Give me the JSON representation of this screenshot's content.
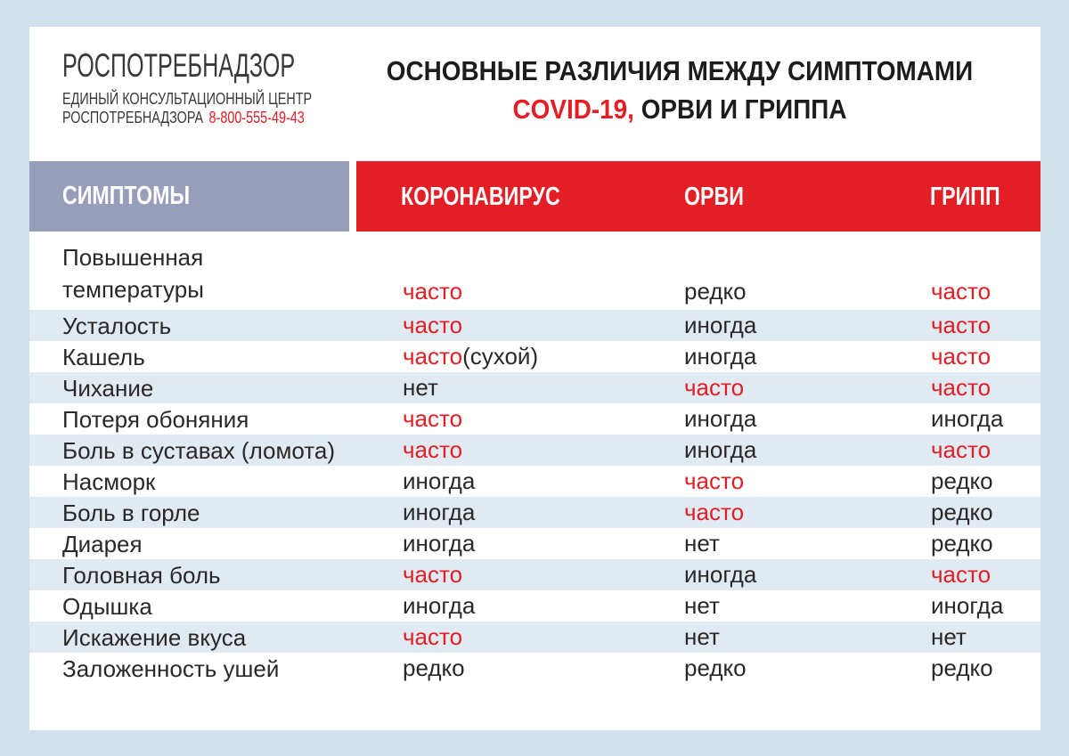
{
  "colors": {
    "page_bg": "#cfe1ea",
    "card_bg": "#ffffff",
    "accent_red": "#e31e24",
    "header_gray_blue": "#969eba",
    "alt_row_blue": "#dfeaf2",
    "text_dark": "#2b2827"
  },
  "logo": {
    "title": "РОСПОТРЕБНАДЗОР",
    "subtitle_line1": "ЕДИНЫЙ КОНСУЛЬТАЦИОННЫЙ ЦЕНТР",
    "subtitle_line2": "РОСПОТРЕБНАДЗОРА",
    "phone": "8-800-555-49-43"
  },
  "title": {
    "line1": "ОСНОВНЫЕ РАЗЛИЧИЯ МЕЖДУ СИМПТОМАМИ",
    "line2_red": "COVID-19,",
    "line2_rest": " ОРВИ И ГРИППА"
  },
  "table": {
    "symptom_header": "СИМПТОМЫ",
    "col_headers": [
      "КОРОНАВИРУС",
      "ОРВИ",
      "ГРИПП"
    ],
    "rows": [
      {
        "symptom_lines": [
          "Повышенная",
          "температуры"
        ],
        "cells": [
          [
            {
              "text": "часто",
              "red": true
            }
          ],
          [
            {
              "text": "редко",
              "red": false
            }
          ],
          [
            {
              "text": "часто",
              "red": true
            }
          ]
        ]
      },
      {
        "symptom_lines": [
          "Усталость"
        ],
        "cells": [
          [
            {
              "text": "часто",
              "red": true
            }
          ],
          [
            {
              "text": "иногда",
              "red": false
            }
          ],
          [
            {
              "text": "часто",
              "red": true
            }
          ]
        ]
      },
      {
        "symptom_lines": [
          "Кашель"
        ],
        "cells": [
          [
            {
              "text": "часто",
              "red": true
            },
            {
              "text": "(сухой)",
              "red": false
            }
          ],
          [
            {
              "text": "иногда",
              "red": false
            }
          ],
          [
            {
              "text": "часто",
              "red": true
            }
          ]
        ]
      },
      {
        "symptom_lines": [
          "Чихание"
        ],
        "cells": [
          [
            {
              "text": "нет",
              "red": false
            }
          ],
          [
            {
              "text": "часто",
              "red": true
            }
          ],
          [
            {
              "text": "часто",
              "red": true
            }
          ]
        ]
      },
      {
        "symptom_lines": [
          "Потеря обоняния"
        ],
        "cells": [
          [
            {
              "text": "часто",
              "red": true
            }
          ],
          [
            {
              "text": "иногда",
              "red": false
            }
          ],
          [
            {
              "text": "иногда",
              "red": false
            }
          ]
        ]
      },
      {
        "symptom_lines": [
          "Боль в суставах (ломота)"
        ],
        "cells": [
          [
            {
              "text": "часто",
              "red": true
            }
          ],
          [
            {
              "text": "иногда",
              "red": false
            }
          ],
          [
            {
              "text": "часто",
              "red": true
            }
          ]
        ]
      },
      {
        "symptom_lines": [
          "Насморк"
        ],
        "cells": [
          [
            {
              "text": "иногда",
              "red": false
            }
          ],
          [
            {
              "text": "часто",
              "red": true
            }
          ],
          [
            {
              "text": "редко",
              "red": false
            }
          ]
        ]
      },
      {
        "symptom_lines": [
          "Боль в горле"
        ],
        "cells": [
          [
            {
              "text": "иногда",
              "red": false
            }
          ],
          [
            {
              "text": "часто",
              "red": true
            }
          ],
          [
            {
              "text": "редко",
              "red": false
            }
          ]
        ]
      },
      {
        "symptom_lines": [
          "Диарея"
        ],
        "cells": [
          [
            {
              "text": "иногда",
              "red": false
            }
          ],
          [
            {
              "text": "нет",
              "red": false
            }
          ],
          [
            {
              "text": "редко",
              "red": false
            }
          ]
        ]
      },
      {
        "symptom_lines": [
          "Головная боль"
        ],
        "cells": [
          [
            {
              "text": "часто",
              "red": true
            }
          ],
          [
            {
              "text": "иногда",
              "red": false
            }
          ],
          [
            {
              "text": "часто",
              "red": true
            }
          ]
        ]
      },
      {
        "symptom_lines": [
          "Одышка"
        ],
        "cells": [
          [
            {
              "text": "иногда",
              "red": false
            }
          ],
          [
            {
              "text": "нет",
              "red": false
            }
          ],
          [
            {
              "text": "иногда",
              "red": false
            }
          ]
        ]
      },
      {
        "symptom_lines": [
          "Искажение вкуса"
        ],
        "cells": [
          [
            {
              "text": "часто",
              "red": true
            }
          ],
          [
            {
              "text": "нет",
              "red": false
            }
          ],
          [
            {
              "text": "нет",
              "red": false
            }
          ]
        ]
      },
      {
        "symptom_lines": [
          "Заложенность ушей"
        ],
        "cells": [
          [
            {
              "text": "редко",
              "red": false
            }
          ],
          [
            {
              "text": "редко",
              "red": false
            }
          ],
          [
            {
              "text": "редко",
              "red": false
            }
          ]
        ]
      }
    ]
  }
}
